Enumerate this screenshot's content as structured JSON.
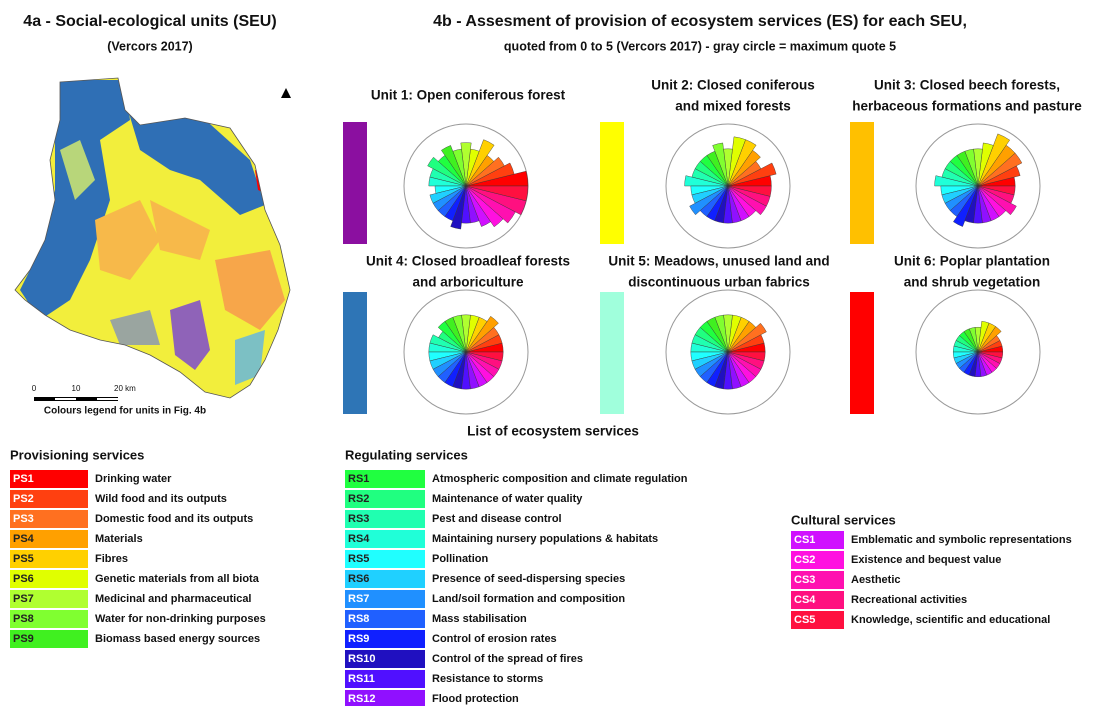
{
  "map": {
    "title": "4a - Social-ecological units (SEU)",
    "subtitle": "(Vercors 2017)",
    "scale_labels": [
      "0",
      "10",
      "20 km"
    ],
    "legend_caption": "Colours legend for units in Fig. 4b"
  },
  "panel": {
    "title": "4b - Assesment of provision of ecosystem services (ES) for each SEU,",
    "subtitle": "quoted from 0 to 5 (Vercors 2017) - gray circle = maximum quote 5",
    "max": 5
  },
  "units": [
    {
      "title": [
        "Unit 1: Open coniferous forest"
      ],
      "color": "#8b0fa0",
      "values": [
        5,
        4,
        3.5,
        3,
        4,
        3,
        3.5,
        3,
        3.5,
        3,
        3.5,
        3,
        3,
        2.5,
        3,
        3,
        3,
        3,
        3.5,
        3,
        3,
        3.5,
        4,
        4.5,
        5,
        5
      ]
    },
    {
      "title": [
        "Unit 2: Closed coniferous",
        "and mixed forests"
      ],
      "color": "#ffff00",
      "values": [
        3.5,
        4,
        3,
        3.5,
        4,
        4,
        3,
        3.5,
        3,
        3,
        3,
        3,
        3.5,
        3,
        3,
        3.5,
        3,
        3,
        3,
        3,
        3,
        3,
        3,
        3.5,
        3.5,
        3.5
      ]
    },
    {
      "title": [
        "Unit 3: Closed beech forests,",
        "herbaceous formations and pasture"
      ],
      "color": "#ffc000",
      "values": [
        3,
        3.5,
        4,
        4,
        4.5,
        3.5,
        3,
        3,
        3,
        3,
        3,
        3,
        3.5,
        3,
        3,
        3,
        3,
        3.5,
        3,
        3,
        3,
        3,
        3,
        3.5,
        3,
        3
      ]
    },
    {
      "title": [
        "Unit 4: Closed broadleaf forests",
        "and arboriculture"
      ],
      "color": "#2e75b6",
      "values": [
        3,
        3,
        3,
        3.5,
        3,
        3,
        3,
        3,
        3,
        3,
        2.5,
        3,
        3,
        3,
        3,
        3,
        3,
        3,
        3,
        3,
        3,
        3,
        3,
        3,
        3,
        3
      ]
    },
    {
      "title": [
        "Unit 5: Meadows, unused land and",
        "discontinuous urban fabrics"
      ],
      "color": "#a0ffdc",
      "values": [
        3,
        3,
        3.5,
        3,
        3,
        3,
        3,
        3,
        3,
        3,
        3,
        3,
        3,
        3,
        3,
        3,
        3,
        3,
        3,
        3,
        3,
        3,
        3,
        3,
        3,
        3
      ]
    },
    {
      "title": [
        "Unit 6: Poplar plantation",
        "and shrub vegetation"
      ],
      "color": "#ff0000",
      "values": [
        2,
        2,
        2,
        2.5,
        2.5,
        2.5,
        2,
        2,
        2,
        2,
        2,
        2,
        2,
        2,
        2,
        2,
        2,
        2,
        2,
        2,
        2,
        2,
        2,
        2,
        2,
        2
      ]
    }
  ],
  "service_list_title": "List of ecosystem services",
  "groups": [
    {
      "name": "Provisioning services",
      "items": [
        {
          "code": "PS1",
          "label": "Drinking water",
          "color": "#ff0000"
        },
        {
          "code": "PS2",
          "label": "Wild food and its outputs",
          "color": "#ff4010"
        },
        {
          "code": "PS3",
          "label": "Domestic food and its outputs",
          "color": "#ff7020"
        },
        {
          "code": "PS4",
          "label": "Materials",
          "color": "#ffa000"
        },
        {
          "code": "PS5",
          "label": "Fibres",
          "color": "#ffd000"
        },
        {
          "code": "PS6",
          "label": "Genetic materials from all biota",
          "color": "#e0ff00"
        },
        {
          "code": "PS7",
          "label": "Medicinal and pharmaceutical",
          "color": "#b0ff30"
        },
        {
          "code": "PS8",
          "label": "Water for non-drinking purposes",
          "color": "#80ff30"
        },
        {
          "code": "PS9",
          "label": "Biomass based energy sources",
          "color": "#40f020"
        }
      ]
    },
    {
      "name": "Regulating services",
      "items": [
        {
          "code": "RS1",
          "label": "Atmospheric composition and climate regulation",
          "color": "#20ff40"
        },
        {
          "code": "RS2",
          "label": "Maintenance of water quality",
          "color": "#20ff80"
        },
        {
          "code": "RS3",
          "label": "Pest and disease control",
          "color": "#20ffb0"
        },
        {
          "code": "RS4",
          "label": "Maintaining nursery populations & habitats",
          "color": "#20ffd8"
        },
        {
          "code": "RS5",
          "label": "Pollination",
          "color": "#20ffff"
        },
        {
          "code": "RS6",
          "label": "Presence of seed-dispersing species",
          "color": "#20d0ff"
        },
        {
          "code": "RS7",
          "label": "Land/soil formation and composition",
          "color": "#2090ff"
        },
        {
          "code": "RS8",
          "label": "Mass stabilisation",
          "color": "#2060ff"
        },
        {
          "code": "RS9",
          "label": "Control of erosion rates",
          "color": "#1020ff"
        },
        {
          "code": "RS10",
          "label": "Control of the spread of fires",
          "color": "#2010c0"
        },
        {
          "code": "RS11",
          "label": "Resistance to storms",
          "color": "#5010ff"
        },
        {
          "code": "RS12",
          "label": "Flood protection",
          "color": "#9010ff"
        }
      ]
    },
    {
      "name": "Cultural services",
      "items": [
        {
          "code": "CS1",
          "label": "Emblematic and symbolic representations",
          "color": "#d010ff"
        },
        {
          "code": "CS2",
          "label": "Existence and bequest value",
          "color": "#ff10e0"
        },
        {
          "code": "CS3",
          "label": "Aesthetic",
          "color": "#ff10b0"
        },
        {
          "code": "CS4",
          "label": "Recreational activities",
          "color": "#ff1080"
        },
        {
          "code": "CS5",
          "label": "Knowledge, scientific and educational",
          "color": "#ff1040"
        }
      ]
    }
  ]
}
